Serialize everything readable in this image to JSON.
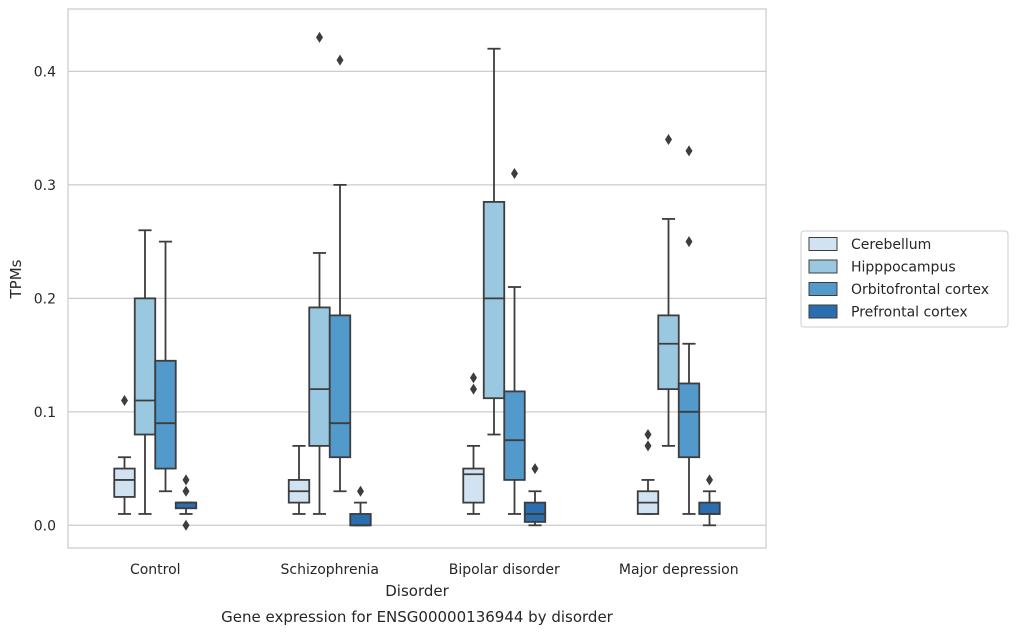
{
  "chart_data": {
    "type": "box",
    "title": "",
    "caption": "Gene expression for ENSG00000136944 by disorder",
    "xlabel": "Disorder",
    "ylabel": "TPMs",
    "ylim": [
      -0.02,
      0.455
    ],
    "yticks": [
      "0.0",
      "0.1",
      "0.2",
      "0.3",
      "0.4"
    ],
    "grid": "horizontal",
    "legend_position": "right",
    "categories": [
      "Control",
      "Schizophrenia",
      "Bipolar disorder",
      "Major depression"
    ],
    "series": [
      {
        "name": "Cerebellum",
        "color": "#d1e3f3",
        "boxes": [
          {
            "whislo": 0.01,
            "q1": 0.025,
            "med": 0.04,
            "q3": 0.05,
            "whishi": 0.06,
            "fliers": [
              0.11
            ]
          },
          {
            "whislo": 0.01,
            "q1": 0.02,
            "med": 0.03,
            "q3": 0.04,
            "whishi": 0.07,
            "fliers": []
          },
          {
            "whislo": 0.01,
            "q1": 0.02,
            "med": 0.045,
            "q3": 0.05,
            "whishi": 0.07,
            "fliers": [
              0.12,
              0.13
            ]
          },
          {
            "whislo": 0.01,
            "q1": 0.01,
            "med": 0.02,
            "q3": 0.03,
            "whishi": 0.04,
            "fliers": [
              0.07,
              0.08
            ]
          }
        ]
      },
      {
        "name": "Hipppocampus",
        "color": "#9ac8e1",
        "boxes": [
          {
            "whislo": 0.01,
            "q1": 0.08,
            "med": 0.11,
            "q3": 0.2,
            "whishi": 0.26,
            "fliers": []
          },
          {
            "whislo": 0.01,
            "q1": 0.07,
            "med": 0.12,
            "q3": 0.192,
            "whishi": 0.24,
            "fliers": [
              0.43
            ]
          },
          {
            "whislo": 0.08,
            "q1": 0.112,
            "med": 0.2,
            "q3": 0.285,
            "whishi": 0.42,
            "fliers": []
          },
          {
            "whislo": 0.07,
            "q1": 0.12,
            "med": 0.16,
            "q3": 0.185,
            "whishi": 0.27,
            "fliers": [
              0.34
            ]
          }
        ]
      },
      {
        "name": "Orbitofrontal cortex",
        "color": "#5299cc",
        "boxes": [
          {
            "whislo": 0.03,
            "q1": 0.05,
            "med": 0.09,
            "q3": 0.145,
            "whishi": 0.25,
            "fliers": []
          },
          {
            "whislo": 0.03,
            "q1": 0.06,
            "med": 0.09,
            "q3": 0.185,
            "whishi": 0.3,
            "fliers": [
              0.41
            ]
          },
          {
            "whislo": 0.01,
            "q1": 0.04,
            "med": 0.075,
            "q3": 0.118,
            "whishi": 0.21,
            "fliers": [
              0.31
            ]
          },
          {
            "whislo": 0.01,
            "q1": 0.06,
            "med": 0.1,
            "q3": 0.125,
            "whishi": 0.16,
            "fliers": [
              0.25,
              0.33
            ]
          }
        ]
      },
      {
        "name": "Prefrontal cortex",
        "color": "#2a6eb0",
        "boxes": [
          {
            "whislo": 0.01,
            "q1": 0.015,
            "med": 0.02,
            "q3": 0.02,
            "whishi": 0.02,
            "fliers": [
              0.0,
              0.03,
              0.04
            ]
          },
          {
            "whislo": 0.0,
            "q1": 0.0,
            "med": 0.0,
            "q3": 0.01,
            "whishi": 0.02,
            "fliers": [
              0.03
            ]
          },
          {
            "whislo": 0.0,
            "q1": 0.003,
            "med": 0.01,
            "q3": 0.02,
            "whishi": 0.03,
            "fliers": [
              0.05
            ]
          },
          {
            "whislo": 0.0,
            "q1": 0.01,
            "med": 0.01,
            "q3": 0.02,
            "whishi": 0.03,
            "fliers": [
              0.04
            ]
          }
        ]
      }
    ]
  }
}
